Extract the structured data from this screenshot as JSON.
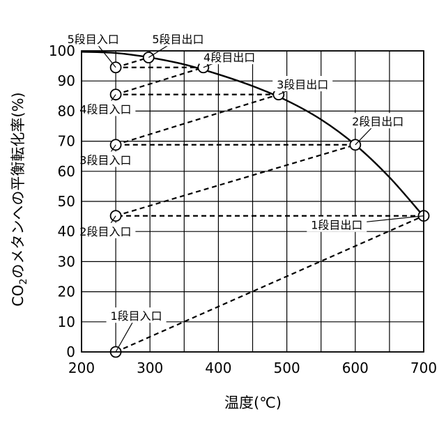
{
  "chart_data": {
    "type": "line",
    "title": "",
    "xlabel": "温度(℃)",
    "ylabel_parts": {
      "pre": "CO",
      "sub": "2",
      "post": "のメタンへの平衡転化率(%)"
    },
    "xlim": [
      200,
      700
    ],
    "ylim": [
      0,
      100
    ],
    "xticks": [
      200,
      300,
      400,
      500,
      600,
      700
    ],
    "yticks": [
      0,
      10,
      20,
      30,
      40,
      50,
      60,
      70,
      80,
      90,
      100
    ],
    "grid": true,
    "legend": "none",
    "equilibrium_curve": {
      "x": [
        200,
        250,
        300,
        350,
        400,
        450,
        500,
        550,
        600,
        650,
        700
      ],
      "y": [
        99.7,
        99.3,
        97.8,
        95.5,
        92.2,
        88.3,
        83.5,
        77.2,
        68.8,
        58.0,
        45.0
      ]
    },
    "stages": [
      {
        "inlet": [
          250,
          0
        ],
        "outlet": [
          700,
          45.2
        ]
      },
      {
        "inlet": [
          250,
          45.2
        ],
        "outlet": [
          600,
          68.8
        ]
      },
      {
        "inlet": [
          250,
          68.8
        ],
        "outlet": [
          488,
          85.5
        ]
      },
      {
        "inlet": [
          250,
          85.5
        ],
        "outlet": [
          378,
          94.5
        ]
      },
      {
        "inlet": [
          250,
          94.5
        ],
        "outlet": [
          298,
          97.8
        ]
      }
    ],
    "annotations": [
      {
        "text": "1段目入口",
        "target": [
          250,
          0
        ],
        "label_at": [
          280,
          10.6
        ],
        "anchor": "middle"
      },
      {
        "text": "1段目出口",
        "target": [
          700,
          45.2
        ],
        "label_at": [
          573,
          40.8
        ],
        "anchor": "middle"
      },
      {
        "text": "2段目入口",
        "target": [
          250,
          45.2
        ],
        "label_at": [
          235,
          38.7
        ],
        "anchor": "middle"
      },
      {
        "text": "2段目出口",
        "target": [
          600,
          68.8
        ],
        "label_at": [
          633,
          75.2
        ],
        "anchor": "middle"
      },
      {
        "text": "3段目入口",
        "target": [
          250,
          68.8
        ],
        "label_at": [
          235,
          62.4
        ],
        "anchor": "middle"
      },
      {
        "text": "3段目出口",
        "target": [
          488,
          85.5
        ],
        "label_at": [
          523,
          87.5
        ],
        "anchor": "middle"
      },
      {
        "text": "4段目入口",
        "target": [
          250,
          85.5
        ],
        "label_at": [
          235,
          79.3
        ],
        "anchor": "middle"
      },
      {
        "text": "4段目出口",
        "target": [
          378,
          94.5
        ],
        "label_at": [
          416,
          96.5
        ],
        "anchor": "middle"
      },
      {
        "text": "5段目入口",
        "target": [
          250,
          94.5
        ],
        "label_at": [
          217,
          102.5
        ],
        "anchor": "middle"
      },
      {
        "text": "5段目出口",
        "target": [
          298,
          97.8
        ],
        "label_at": [
          341,
          102.5
        ],
        "anchor": "middle"
      }
    ]
  }
}
